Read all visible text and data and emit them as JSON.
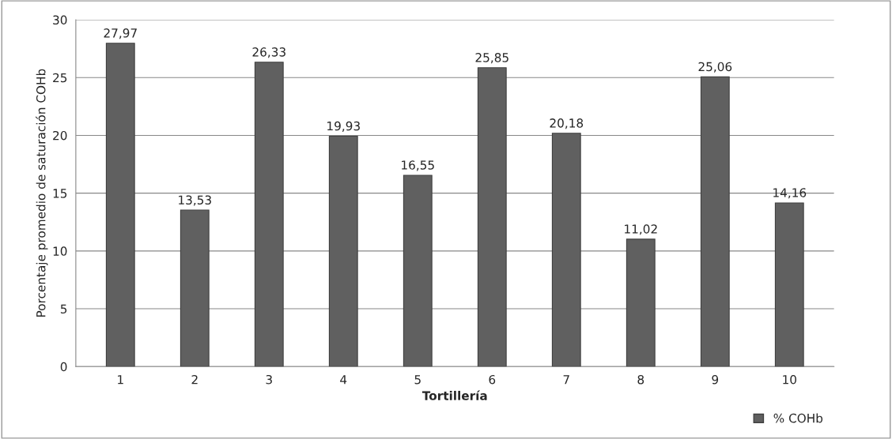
{
  "chart_data": {
    "type": "bar",
    "xlabel": "Tortillería",
    "ylabel": "Porcentaje promedio de saturación COHb",
    "categories": [
      "1",
      "2",
      "3",
      "4",
      "5",
      "6",
      "7",
      "8",
      "9",
      "10"
    ],
    "series": [
      {
        "name": "% COHb",
        "color": "#606060",
        "values": [
          27.97,
          13.53,
          26.33,
          19.93,
          16.55,
          25.85,
          20.18,
          11.02,
          25.06,
          14.16
        ],
        "value_labels": [
          "27,97",
          "13,53",
          "26,33",
          "19,93",
          "16,55",
          "25,85",
          "20,18",
          "11,02",
          "25,06",
          "14,16"
        ]
      }
    ],
    "ylim": [
      0,
      30
    ],
    "yticks": [
      0,
      5,
      10,
      15,
      20,
      25,
      30
    ],
    "grid": "y",
    "legend": "bottom right"
  }
}
